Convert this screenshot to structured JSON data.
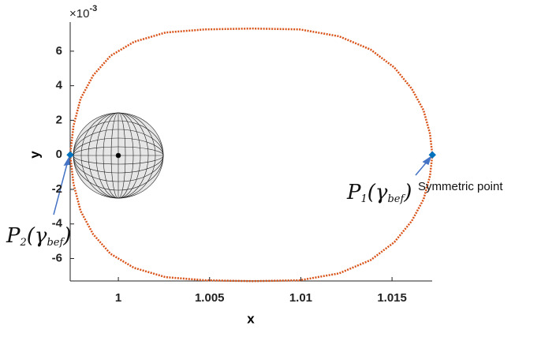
{
  "chart_data": {
    "type": "line",
    "xlabel": "x",
    "ylabel": "y",
    "y_scale_label": {
      "base": "×10",
      "exponent": "-3"
    },
    "xlim": [
      0.99736,
      1.0172
    ],
    "ylim": [
      -7.3,
      7.5
    ],
    "xticks": [
      1,
      1.005,
      1.01,
      1.015
    ],
    "yticks": [
      -6,
      -4,
      -2,
      0,
      2,
      4,
      6
    ],
    "grid": false,
    "series": [
      {
        "type": "line",
        "color": "#d95319",
        "x": [
          0.99736,
          0.99754,
          0.99793,
          0.99862,
          0.99957,
          1.00086,
          1.00259,
          1.00476,
          1.00735,
          1.00994,
          1.0121,
          1.01383,
          1.01513,
          1.01608,
          1.01673,
          1.01708,
          1.01721,
          1.01708,
          1.01673,
          1.01608,
          1.01513,
          1.01383,
          1.0121,
          1.00994,
          1.00735,
          1.00476,
          1.00259,
          1.00086,
          0.99957,
          0.99862,
          0.99793,
          0.99754,
          0.99736
        ],
        "values": [
          0,
          1.67,
          3.25,
          4.6,
          5.73,
          6.54,
          7.08,
          7.26,
          7.31,
          7.26,
          6.86,
          6.09,
          5.05,
          3.83,
          2.57,
          1.22,
          0,
          -1.22,
          -2.57,
          -3.83,
          -5.05,
          -6.09,
          -6.86,
          -7.26,
          -7.31,
          -7.26,
          -7.08,
          -6.54,
          -5.73,
          -4.6,
          -3.25,
          -1.67,
          0
        ]
      },
      {
        "type": "scatter",
        "color": "#0072bd",
        "x": [
          0.99736,
          1.01721
        ],
        "values": [
          0,
          0
        ]
      }
    ],
    "annotations": [
      {
        "parts": [
          "P",
          "2",
          "(γ",
          "bef",
          ")"
        ]
      },
      {
        "parts": [
          "P",
          "1",
          "(γ",
          "bef",
          ")"
        ],
        "note": "Symmetric point"
      }
    ]
  }
}
